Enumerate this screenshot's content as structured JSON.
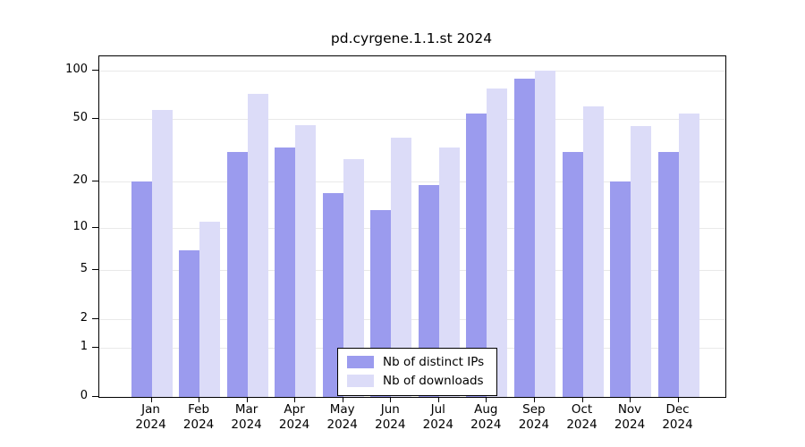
{
  "chart_data": {
    "type": "bar",
    "title": "pd.cyrgene.1.1.st 2024",
    "year": "2024",
    "categories": [
      "Jan",
      "Feb",
      "Mar",
      "Apr",
      "May",
      "Jun",
      "Jul",
      "Aug",
      "Sep",
      "Oct",
      "Nov",
      "Dec"
    ],
    "series": [
      {
        "name": "Nb of distinct IPs",
        "color": "#9b9bee",
        "values": [
          20,
          7,
          31,
          33,
          17,
          13,
          19,
          54,
          90,
          31,
          20,
          31
        ]
      },
      {
        "name": "Nb of downloads",
        "color": "#dcdcf8",
        "values": [
          57,
          11,
          72,
          46,
          28,
          38,
          33,
          78,
          100,
          60,
          45,
          54
        ]
      }
    ],
    "yticks": [
      0,
      1,
      2,
      5,
      10,
      20,
      50,
      100
    ],
    "yscale": "log10(value+1)",
    "ylim": [
      0,
      100
    ],
    "xlabel": "",
    "ylabel": "",
    "grid": true,
    "legend_position": "bottom-center"
  }
}
